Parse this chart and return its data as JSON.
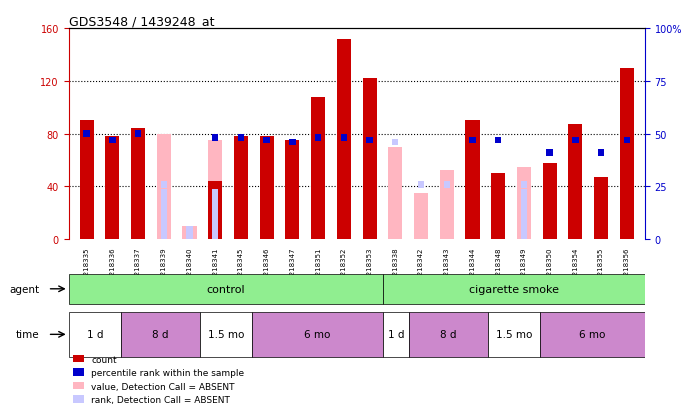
{
  "title": "GDS3548 / 1439248_at",
  "samples": [
    "GSM218335",
    "GSM218336",
    "GSM218337",
    "GSM218339",
    "GSM218340",
    "GSM218341",
    "GSM218345",
    "GSM218346",
    "GSM218347",
    "GSM218351",
    "GSM218352",
    "GSM218353",
    "GSM218338",
    "GSM218342",
    "GSM218343",
    "GSM218344",
    "GSM218348",
    "GSM218349",
    "GSM218350",
    "GSM218354",
    "GSM218355",
    "GSM218356"
  ],
  "count_values": [
    90,
    78,
    84,
    0,
    0,
    44,
    78,
    78,
    75,
    108,
    152,
    122,
    0,
    0,
    0,
    90,
    50,
    0,
    58,
    87,
    47,
    130
  ],
  "absent_value_values": [
    0,
    0,
    0,
    80,
    10,
    75,
    0,
    0,
    0,
    0,
    0,
    0,
    70,
    35,
    52,
    0,
    0,
    55,
    0,
    0,
    0,
    0
  ],
  "absent_rank_values": [
    0,
    0,
    0,
    38,
    10,
    38,
    0,
    0,
    0,
    0,
    0,
    0,
    0,
    0,
    0,
    0,
    0,
    38,
    0,
    0,
    0,
    0
  ],
  "percentile_rank": [
    50,
    47,
    50,
    0,
    0,
    48,
    48,
    47,
    46,
    48,
    48,
    47,
    0,
    0,
    0,
    47,
    47,
    0,
    41,
    47,
    41,
    47
  ],
  "absent_percentile_rank": [
    0,
    0,
    0,
    26,
    0,
    0,
    0,
    0,
    0,
    0,
    0,
    0,
    46,
    26,
    26,
    0,
    0,
    26,
    0,
    0,
    0,
    0
  ],
  "yticks": [
    0,
    40,
    80,
    120,
    160
  ],
  "ytick_labels": [
    "0",
    "40",
    "80",
    "120",
    "160"
  ],
  "y2ticks": [
    0,
    25,
    50,
    75,
    100
  ],
  "y2tick_labels": [
    "0",
    "25",
    "50",
    "75",
    "100%"
  ],
  "control_samples": 12,
  "smoke_samples": 10,
  "control_label": "control",
  "smoke_label": "cigarette smoke",
  "agent_label": "agent",
  "time_label": "time",
  "time_groups_control": [
    {
      "label": "1 d",
      "indices": [
        0,
        1
      ],
      "color": "#FFFFFF"
    },
    {
      "label": "8 d",
      "indices": [
        2,
        3,
        4
      ],
      "color": "#CC88CC"
    },
    {
      "label": "1.5 mo",
      "indices": [
        5,
        6
      ],
      "color": "#FFFFFF"
    },
    {
      "label": "6 mo",
      "indices": [
        7,
        8,
        9,
        10,
        11
      ],
      "color": "#CC88CC"
    }
  ],
  "time_groups_smoke": [
    {
      "label": "1 d",
      "indices": [
        12
      ],
      "color": "#FFFFFF"
    },
    {
      "label": "8 d",
      "indices": [
        13,
        14,
        15
      ],
      "color": "#CC88CC"
    },
    {
      "label": "1.5 mo",
      "indices": [
        16,
        17
      ],
      "color": "#FFFFFF"
    },
    {
      "label": "6 mo",
      "indices": [
        18,
        19,
        20,
        21
      ],
      "color": "#CC88CC"
    }
  ],
  "bar_width": 0.55,
  "count_color": "#CC0000",
  "percentile_color": "#0000CC",
  "absent_value_color": "#FFB6C1",
  "absent_rank_color": "#C8C8FF",
  "bg_color": "#FFFFFF",
  "tick_color_left": "#CC0000",
  "tick_color_right": "#0000CC",
  "green_color": "#90EE90"
}
